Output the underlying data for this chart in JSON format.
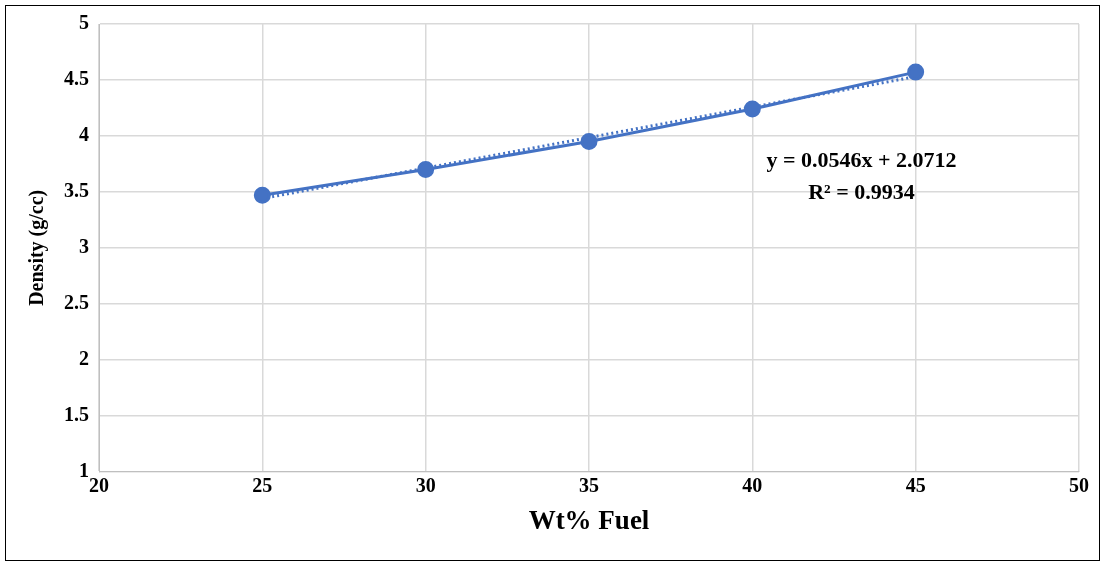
{
  "chart_data": {
    "type": "line",
    "xlabel": "Wt% Fuel",
    "ylabel": "Density (g/cc)",
    "x": [
      25,
      30,
      35,
      40,
      45
    ],
    "series": [
      {
        "color": "#4472c4",
        "values": [
          3.47,
          3.7,
          3.95,
          4.24,
          4.57
        ],
        "marker": "circle",
        "line_style": "solid"
      },
      {
        "type": "line",
        "color": "#4472c4",
        "x": [
          25,
          45
        ],
        "values": [
          3.44,
          4.53
        ],
        "marker": "none",
        "line_style": "dotted"
      }
    ],
    "xlim": [
      20,
      50
    ],
    "xticks": [
      20,
      25,
      30,
      35,
      40,
      45,
      50
    ],
    "ylim": [
      1,
      5
    ],
    "yticks": [
      1,
      1.5,
      2,
      2.5,
      3,
      3.5,
      4,
      4.5,
      5
    ],
    "grid": true,
    "legend": false,
    "annotations": [
      "y = 0.0546x + 2.0712",
      "R² = 0.9934"
    ]
  }
}
